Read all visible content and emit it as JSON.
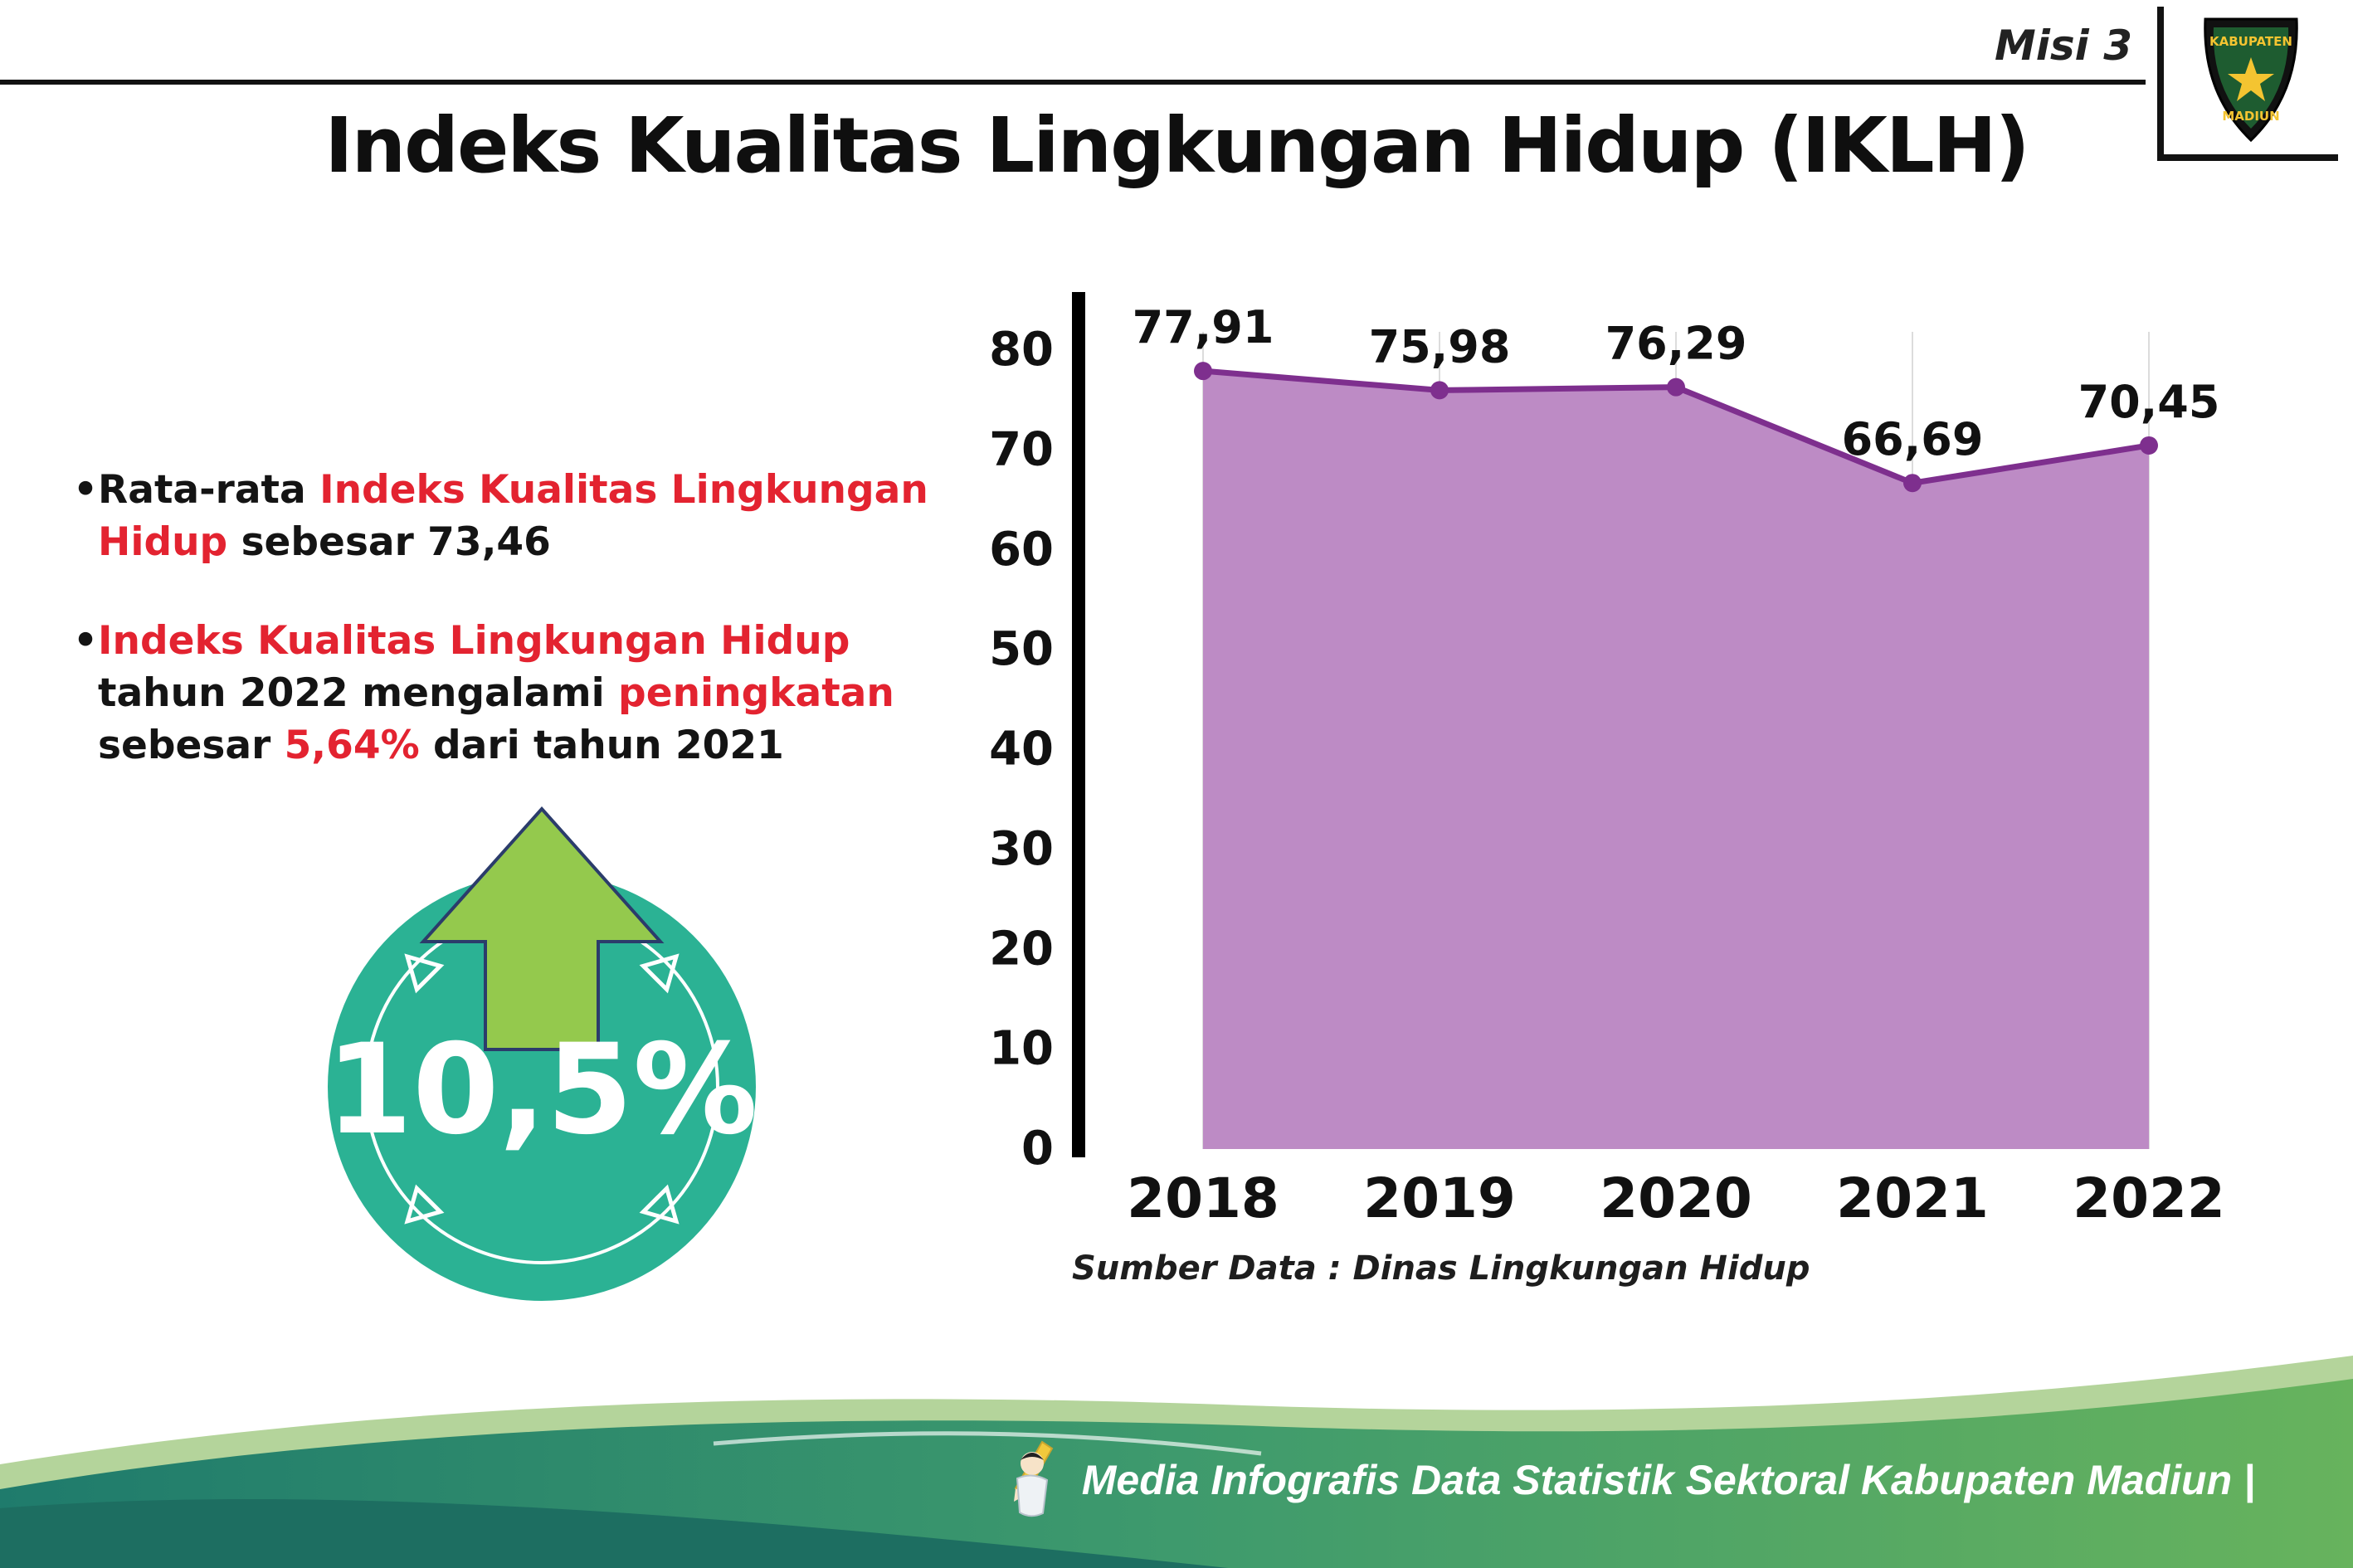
{
  "header": {
    "misi": "Misi 3",
    "title": "Indeks Kualitas Lingkungan Hidup (IKLH)",
    "logo": {
      "top_text": "KABUPATEN",
      "bottom_text": "MADIUN"
    }
  },
  "bullets": {
    "marker": "•",
    "b1": {
      "pre": "Rata-rata ",
      "red": "Indeks Kualitas Lingkungan Hidup",
      "post": " sebesar 73,46"
    },
    "b2": {
      "red1": "Indeks Kualitas Lingkungan Hidup",
      "mid1": " tahun 2022 mengalami ",
      "red2": "peningkatan",
      "mid2": " sebesar ",
      "red3": "5,64%",
      "post": " dari tahun 2021"
    }
  },
  "badge": {
    "value": "10,5%"
  },
  "chart_data": {
    "type": "area",
    "title": "",
    "categories": [
      "2018",
      "2019",
      "2020",
      "2021",
      "2022"
    ],
    "values": [
      77.91,
      75.98,
      76.29,
      66.69,
      70.45
    ],
    "point_labels": [
      "77,91",
      "75,98",
      "76,29",
      "66,69",
      "70,45"
    ],
    "ylim": [
      0,
      80
    ],
    "yticks": [
      0,
      10,
      20,
      30,
      40,
      50,
      60,
      70,
      80
    ],
    "grid": "vertical-light",
    "legend": "none",
    "fill_color": "#bd8bc5",
    "line_color": "#7e2f8e",
    "source": "Sumber Data : Dinas Lingkungan Hidup"
  },
  "footer": {
    "credit": "Media Infografis Data Statistik Sektoral Kabupaten Madiun |"
  },
  "colors": {
    "accent_red": "#e32330",
    "badge_teal": "#2bb294",
    "arrow_green": "#94c94d",
    "footer_teal": "#1f7b6c",
    "footer_green": "#67b35d"
  }
}
